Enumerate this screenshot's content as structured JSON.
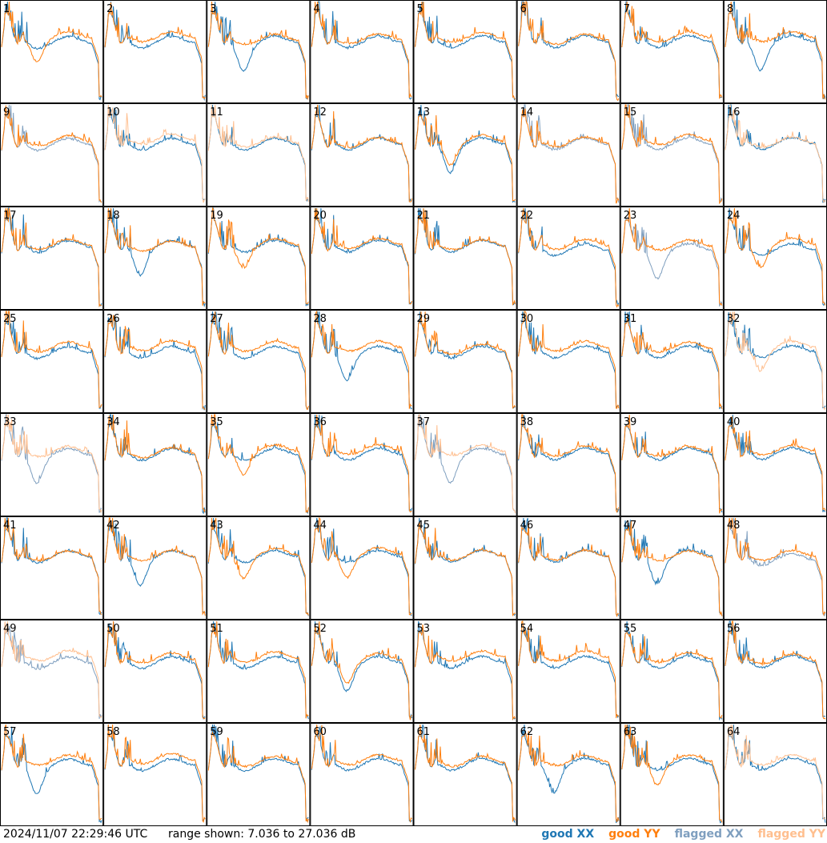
{
  "chart_data": {
    "type": "line",
    "grid": {
      "rows": 8,
      "cols": 8
    },
    "colors": {
      "good_xx": "#1f77b4",
      "good_yy": "#ff7f0e",
      "flagged_xx": "#7f9fbf",
      "flagged_yy": "#ffbf8f"
    },
    "ylim": [
      7.036,
      27.036
    ],
    "panels": [
      {
        "label": "1",
        "xx": "good",
        "yy": "good"
      },
      {
        "label": "2",
        "xx": "good",
        "yy": "good"
      },
      {
        "label": "3",
        "xx": "good",
        "yy": "good"
      },
      {
        "label": "4",
        "xx": "good",
        "yy": "good"
      },
      {
        "label": "5",
        "xx": "good",
        "yy": "good"
      },
      {
        "label": "6",
        "xx": "good",
        "yy": "good"
      },
      {
        "label": "7",
        "xx": "good",
        "yy": "good"
      },
      {
        "label": "8",
        "xx": "good",
        "yy": "good"
      },
      {
        "label": "9",
        "xx": "flagged",
        "yy": "good"
      },
      {
        "label": "10",
        "xx": "good",
        "yy": "flagged"
      },
      {
        "label": "11",
        "xx": "good",
        "yy": "flagged"
      },
      {
        "label": "12",
        "xx": "good",
        "yy": "good"
      },
      {
        "label": "13",
        "xx": "good",
        "yy": "good"
      },
      {
        "label": "14",
        "xx": "flagged",
        "yy": "good"
      },
      {
        "label": "15",
        "xx": "flagged",
        "yy": "good"
      },
      {
        "label": "16",
        "xx": "good",
        "yy": "flagged"
      },
      {
        "label": "17",
        "xx": "good",
        "yy": "good"
      },
      {
        "label": "18",
        "xx": "good",
        "yy": "good"
      },
      {
        "label": "19",
        "xx": "good",
        "yy": "good"
      },
      {
        "label": "20",
        "xx": "good",
        "yy": "good"
      },
      {
        "label": "21",
        "xx": "good",
        "yy": "good"
      },
      {
        "label": "22",
        "xx": "good",
        "yy": "good"
      },
      {
        "label": "23",
        "xx": "flagged",
        "yy": "good"
      },
      {
        "label": "24",
        "xx": "good",
        "yy": "good"
      },
      {
        "label": "25",
        "xx": "good",
        "yy": "good"
      },
      {
        "label": "26",
        "xx": "good",
        "yy": "good"
      },
      {
        "label": "27",
        "xx": "good",
        "yy": "good"
      },
      {
        "label": "28",
        "xx": "good",
        "yy": "good"
      },
      {
        "label": "29",
        "xx": "good",
        "yy": "good"
      },
      {
        "label": "30",
        "xx": "good",
        "yy": "good"
      },
      {
        "label": "31",
        "xx": "good",
        "yy": "good"
      },
      {
        "label": "32",
        "xx": "good",
        "yy": "flagged"
      },
      {
        "label": "33",
        "xx": "flagged",
        "yy": "flagged"
      },
      {
        "label": "34",
        "xx": "good",
        "yy": "good"
      },
      {
        "label": "35",
        "xx": "good",
        "yy": "good"
      },
      {
        "label": "36",
        "xx": "good",
        "yy": "good"
      },
      {
        "label": "37",
        "xx": "flagged",
        "yy": "flagged"
      },
      {
        "label": "38",
        "xx": "good",
        "yy": "good"
      },
      {
        "label": "39",
        "xx": "good",
        "yy": "good"
      },
      {
        "label": "40",
        "xx": "good",
        "yy": "good"
      },
      {
        "label": "41",
        "xx": "good",
        "yy": "good"
      },
      {
        "label": "42",
        "xx": "good",
        "yy": "good"
      },
      {
        "label": "43",
        "xx": "good",
        "yy": "good"
      },
      {
        "label": "44",
        "xx": "good",
        "yy": "good"
      },
      {
        "label": "45",
        "xx": "good",
        "yy": "good"
      },
      {
        "label": "46",
        "xx": "good",
        "yy": "good"
      },
      {
        "label": "47",
        "xx": "good",
        "yy": "good"
      },
      {
        "label": "48",
        "xx": "flagged",
        "yy": "good"
      },
      {
        "label": "49",
        "xx": "flagged",
        "yy": "flagged"
      },
      {
        "label": "50",
        "xx": "good",
        "yy": "good"
      },
      {
        "label": "51",
        "xx": "good",
        "yy": "good"
      },
      {
        "label": "52",
        "xx": "good",
        "yy": "good"
      },
      {
        "label": "53",
        "xx": "good",
        "yy": "good"
      },
      {
        "label": "54",
        "xx": "good",
        "yy": "good"
      },
      {
        "label": "55",
        "xx": "good",
        "yy": "good"
      },
      {
        "label": "56",
        "xx": "good",
        "yy": "good"
      },
      {
        "label": "57",
        "xx": "good",
        "yy": "good"
      },
      {
        "label": "58",
        "xx": "good",
        "yy": "good"
      },
      {
        "label": "59",
        "xx": "good",
        "yy": "good"
      },
      {
        "label": "60",
        "xx": "good",
        "yy": "good"
      },
      {
        "label": "61",
        "xx": "good",
        "yy": "good"
      },
      {
        "label": "62",
        "xx": "good",
        "yy": "good"
      },
      {
        "label": "63",
        "xx": "good",
        "yy": "good"
      },
      {
        "label": "64",
        "xx": "good",
        "yy": "flagged"
      }
    ]
  },
  "footer": {
    "timestamp": "2024/11/07 22:29:46 UTC",
    "range": "range shown: 7.036 to 27.036 dB",
    "legend": {
      "good_xx": "good XX",
      "good_yy": "good YY",
      "flagged_xx": "flagged XX",
      "flagged_yy": "flagged YY"
    }
  }
}
